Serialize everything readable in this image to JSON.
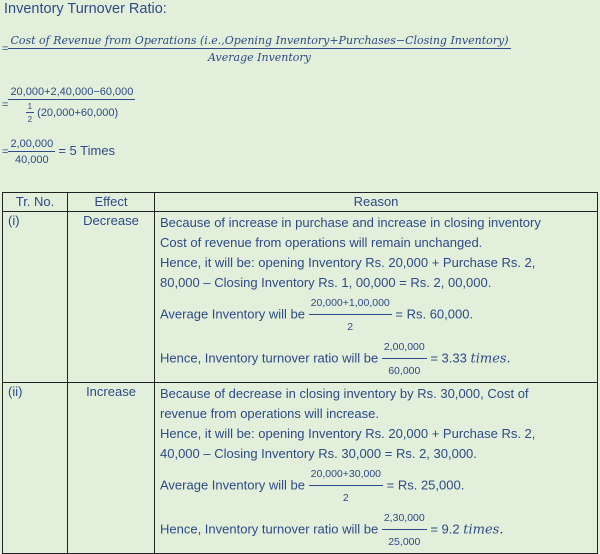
{
  "title": "Inventory Turnover Ratio:",
  "formula": {
    "numerator": "Cost of Revenue from Operations (i.e.,Opening Inventory+Purchases−Closing Inventory)",
    "denominator": "Average Inventory"
  },
  "step1": {
    "numerator": "20,000+2,40,000−60,000",
    "denominator_half": "1",
    "denominator_two": "2",
    "denominator": "(20,000+60,000)"
  },
  "step2": {
    "numerator": "2,00,000",
    "denominator": "40,000",
    "result": "= 5 Times"
  },
  "table": {
    "headers": [
      "Tr. No.",
      "Effect",
      "Reason"
    ],
    "rows": [
      {
        "no": "(i)",
        "effect": "Decrease",
        "lines": [
          "Because of increase in purchase and increase in closing inventory",
          "Cost of revenue from operations will remain unchanged.",
          " Hence, it will be: opening Inventory Rs. 20,000 + Purchase Rs. 2,",
          "80,000 – Closing Inventory Rs. 1, 00,000 = Rs. 2, 00,000."
        ],
        "avg_label": "Average Inventory will be",
        "avg_num": "20,000+1,00,000",
        "avg_den": "2",
        "avg_result": "= Rs. 60,000.",
        "ratio_label": "Hence, Inventory turnover ratio will be",
        "ratio_num": "2,00,000",
        "ratio_den": "60,000",
        "ratio_result": "= 3.33",
        "ratio_unit": "times."
      },
      {
        "no": "(ii)",
        "effect": "Increase",
        "lines": [
          "Because of decrease in closing inventory by Rs. 30,000, Cost of",
          "revenue from operations will increase.",
          "Hence, it will be: opening Inventory Rs. 20,000 + Purchase Rs. 2,",
          "40,000 – Closing Inventory Rs. 30,000 = Rs. 2, 30,000."
        ],
        "avg_label": "Average Inventory will be",
        "avg_num": "20,000+30,000",
        "avg_den": "2",
        "avg_result": "= Rs. 25,000.",
        "ratio_label": "Hence, Inventory turnover ratio will be",
        "ratio_num": "2,30,000",
        "ratio_den": "25,000",
        "ratio_result": "= 9.2",
        "ratio_unit": "times."
      }
    ]
  }
}
